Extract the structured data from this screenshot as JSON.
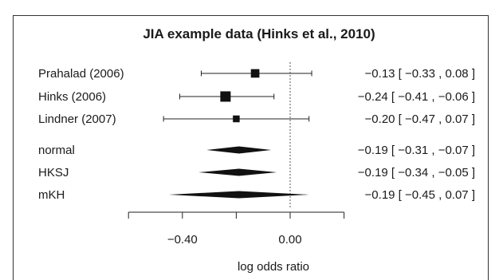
{
  "chart_data": {
    "type": "forest",
    "title": "JIA example data (Hinks et al., 2010)",
    "xlabel": "log odds ratio",
    "x_ticks": [
      -0.6,
      -0.4,
      -0.2,
      0.0,
      0.2
    ],
    "x_tick_labels": [
      "",
      "-0.40",
      "",
      "0.00",
      ""
    ],
    "reference_line": 0.0,
    "studies": [
      {
        "label": "Prahalad (2006)",
        "estimate": -0.13,
        "lower": -0.33,
        "upper": 0.08,
        "ci_text": "−0.13 [ −0.33 ,  0.08 ]",
        "weight": 0.55
      },
      {
        "label": "Hinks (2006)",
        "estimate": -0.24,
        "lower": -0.41,
        "upper": -0.06,
        "ci_text": "−0.24 [ −0.41 , −0.06 ]",
        "weight": 1.0
      },
      {
        "label": "Lindner (2007)",
        "estimate": -0.2,
        "lower": -0.47,
        "upper": 0.07,
        "ci_text": "−0.20 [ −0.47 ,  0.07 ]",
        "weight": 0.25
      }
    ],
    "summaries": [
      {
        "label": "normal",
        "estimate": -0.19,
        "lower": -0.31,
        "upper": -0.07,
        "ci_text": "−0.19 [ −0.31 , −0.07 ]"
      },
      {
        "label": "HKSJ",
        "estimate": -0.19,
        "lower": -0.34,
        "upper": -0.05,
        "ci_text": "−0.19 [ −0.34 , −0.05 ]"
      },
      {
        "label": "mKH",
        "estimate": -0.19,
        "lower": -0.45,
        "upper": 0.07,
        "ci_text": "−0.19 [ −0.45 , 0.07 ]"
      }
    ]
  }
}
